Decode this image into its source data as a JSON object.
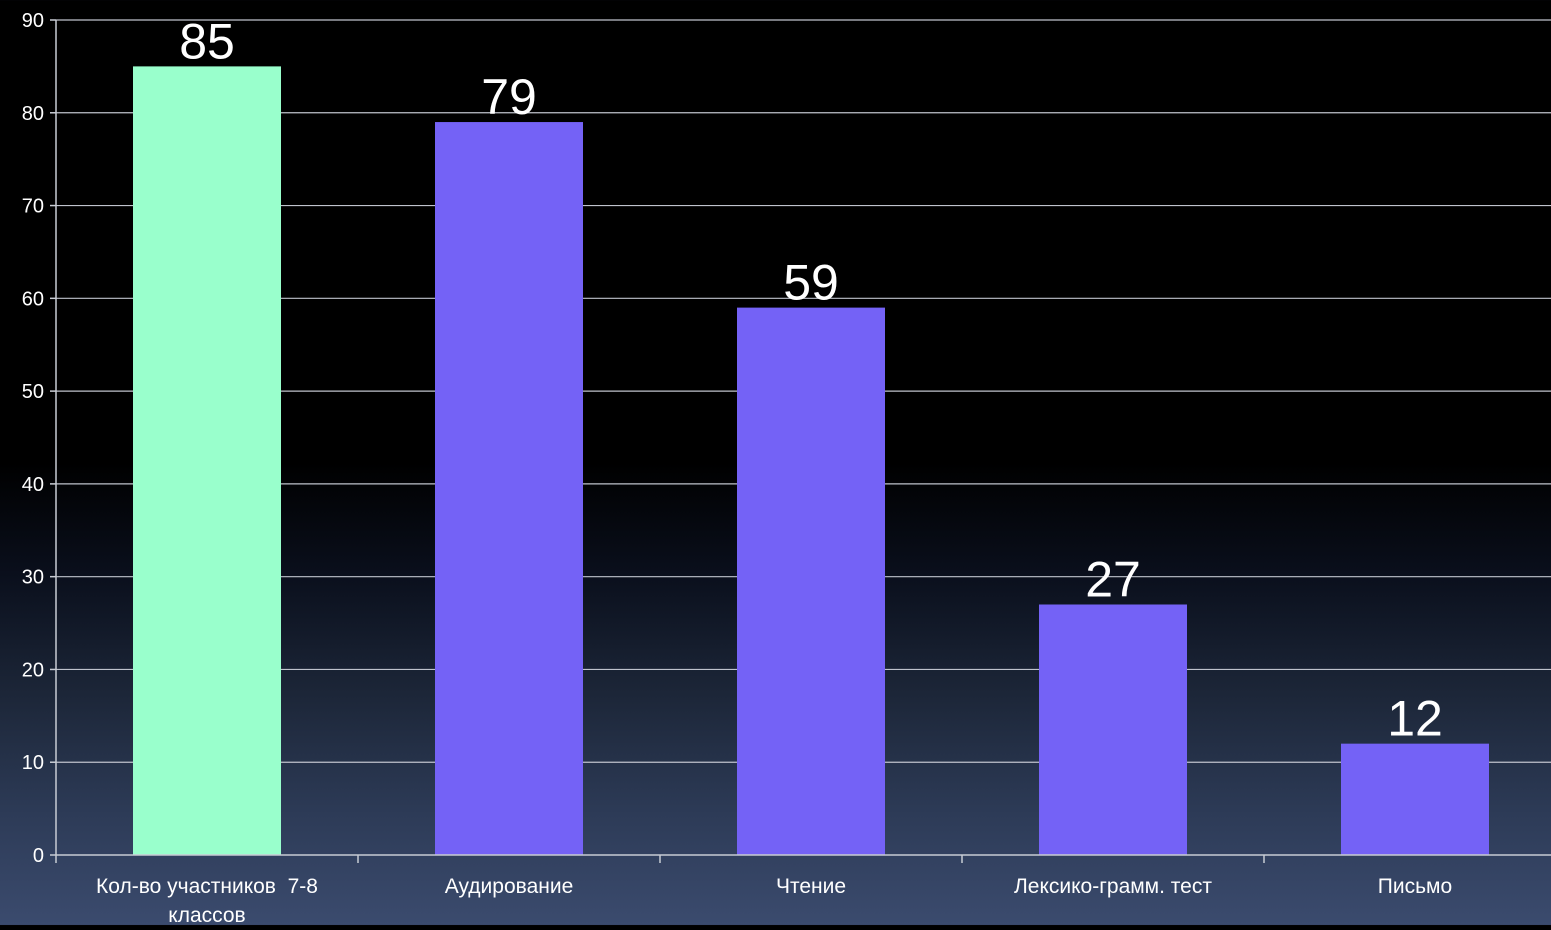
{
  "chart_data": {
    "type": "bar",
    "categories": [
      [
        "Кол-во участников  7-8",
        "классов"
      ],
      [
        "Аудирование"
      ],
      [
        "Чтение"
      ],
      [
        "Лексико-грамм. тест"
      ],
      [
        "Письмо"
      ]
    ],
    "values": [
      85,
      79,
      59,
      27,
      12
    ],
    "data_labels": [
      "85",
      "79",
      "59",
      "27",
      "12"
    ],
    "bar_colors": [
      "#99FFCC",
      "#7462F6",
      "#7462F6",
      "#7462F6",
      "#7462F6"
    ],
    "yticks": [
      "0",
      "10",
      "20",
      "30",
      "40",
      "50",
      "60",
      "70",
      "80",
      "90"
    ],
    "ylim": [
      0,
      90
    ],
    "grid": true,
    "colors": {
      "gridline": "#bfc3cc",
      "axis": "#c8ccd4",
      "tick_label": "#ffffff",
      "data_label": "#ffffff"
    }
  }
}
